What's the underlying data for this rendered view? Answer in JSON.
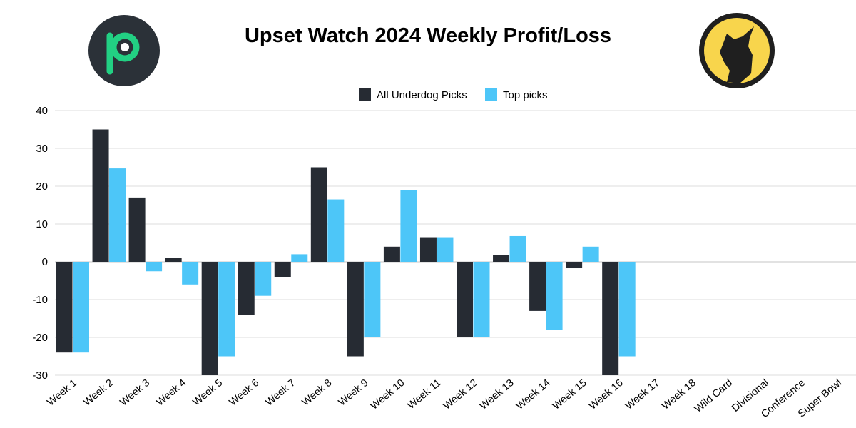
{
  "title": "Upset Watch 2024 Weekly Profit/Loss",
  "colors": {
    "underdog": "#262b33",
    "top": "#4dc6f8",
    "grid": "#dcdcdc"
  },
  "logos": {
    "left": "green-p-logo-icon",
    "right": "howling-wolf-logo-icon"
  },
  "chart_data": {
    "type": "bar",
    "title": "Upset Watch 2024 Weekly Profit/Loss",
    "xlabel": "",
    "ylabel": "",
    "ylim": [
      -30,
      40
    ],
    "yticks": [
      40,
      30,
      20,
      10,
      0,
      -10,
      -20,
      -30
    ],
    "grid": true,
    "legend_position": "top-center",
    "categories": [
      "Week 1",
      "Week 2",
      "Week 3",
      "Week 4",
      "Week 5",
      "Week 6",
      "Week 7",
      "Week 8",
      "Week 9",
      "Week 10",
      "Week 11",
      "Week 12",
      "Week 13",
      "Week 14",
      "Week 15",
      "Week 16",
      "Week 17",
      "Week 18",
      "Wild Card",
      "Divisional",
      "Conference",
      "Super Bowl"
    ],
    "series": [
      {
        "name": "All Underdog Picks",
        "color": "#262b33",
        "values": [
          -24,
          35,
          17,
          1,
          -30,
          -14,
          -4,
          25,
          -25,
          4,
          6.5,
          -20,
          1.7,
          -13,
          -1.7,
          -30,
          null,
          null,
          null,
          null,
          null,
          null
        ]
      },
      {
        "name": "Top picks",
        "color": "#4dc6f8",
        "values": [
          -24,
          24.7,
          -2.5,
          -6,
          -25,
          -9,
          2,
          16.5,
          -20,
          19,
          6.5,
          -20,
          6.8,
          -18,
          4,
          -25,
          null,
          null,
          null,
          null,
          null,
          null
        ]
      }
    ]
  }
}
